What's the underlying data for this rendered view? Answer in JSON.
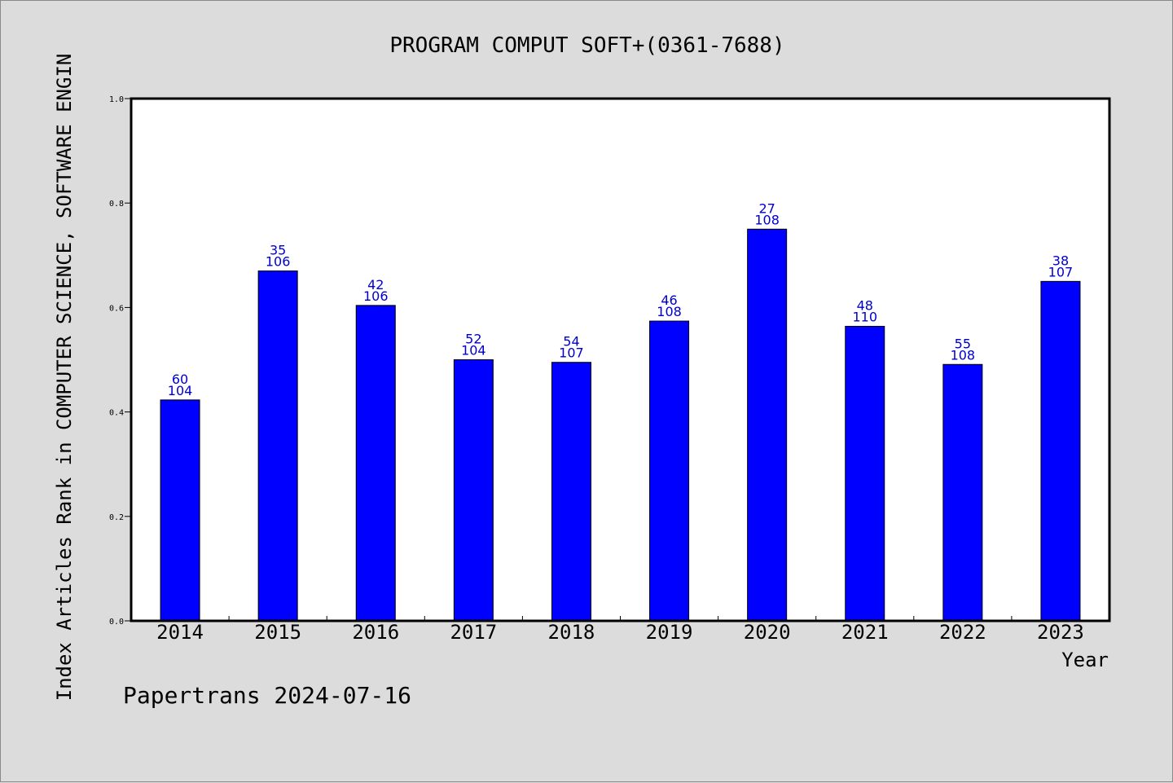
{
  "footer": "Papertrans 2024-07-16",
  "chart_data": {
    "type": "bar",
    "title": "PROGRAM COMPUT SOFT+(0361-7688)",
    "xlabel": "Year",
    "ylabel": "Index Articles Rank in COMPUTER SCIENCE, SOFTWARE ENGIN",
    "ylim": [
      0,
      1.0
    ],
    "yticks": [
      "0.0",
      "0.2",
      "0.4",
      "0.6",
      "0.8",
      "1.0"
    ],
    "categories": [
      "2014",
      "2015",
      "2016",
      "2017",
      "2018",
      "2019",
      "2020",
      "2021",
      "2022",
      "2023"
    ],
    "values": [
      0.423,
      0.67,
      0.604,
      0.5,
      0.495,
      0.574,
      0.75,
      0.564,
      0.491,
      0.65
    ],
    "ranks": [
      "60",
      "35",
      "42",
      "52",
      "54",
      "46",
      "27",
      "48",
      "55",
      "38"
    ],
    "totals": [
      "104",
      "106",
      "106",
      "104",
      "107",
      "108",
      "108",
      "110",
      "108",
      "107"
    ],
    "bar_color": "#0000ff",
    "label_color": "#0000cc",
    "grid": false,
    "legend": "none"
  }
}
